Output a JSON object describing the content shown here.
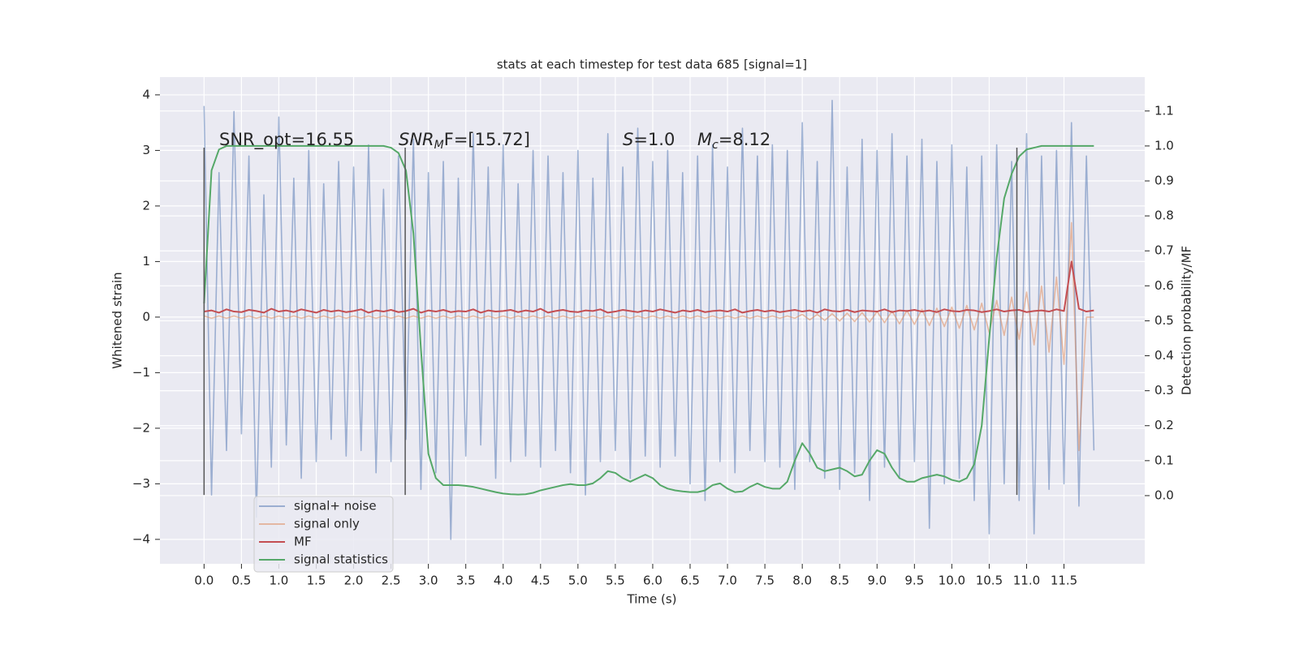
{
  "chart_data": {
    "type": "line",
    "title": "stats at each timestep for test data 685 [signal=1]",
    "xlabel": "Time (s)",
    "ylabel": "Whitened strain",
    "y2label": "Detection probability/MF",
    "annotations": [
      {
        "text": "SNR_opt=16.55"
      },
      {
        "base": "SNR",
        "sub": "M",
        "rest": "F=[15.72]"
      },
      {
        "base": "S",
        "rest": "=1.0"
      },
      {
        "base": "M",
        "sub": "c",
        "rest": "=8.12"
      }
    ],
    "vlines": [
      0,
      2.69,
      10.87
    ],
    "vline_range": [
      -3.2,
      3.05
    ],
    "vline_color": "#555555",
    "grid": true,
    "legend": "lower left",
    "xlim": [
      -0.59,
      12.58
    ],
    "ylim": [
      -4.44,
      4.32
    ],
    "y2lim": [
      -0.195,
      1.197
    ],
    "xticks": [
      {
        "value": 0,
        "label": "0.0"
      },
      0.5,
      {
        "value": 1,
        "label": "1.0"
      },
      1.5,
      {
        "value": 2,
        "label": "2.0"
      },
      2.5,
      {
        "value": 3,
        "label": "3.0"
      },
      3.5,
      {
        "value": 4,
        "label": "4.0"
      },
      4.5,
      {
        "value": 5,
        "label": "5.0"
      },
      5.5,
      {
        "value": 6,
        "label": "6.0"
      },
      6.5,
      {
        "value": 7,
        "label": "7.0"
      },
      7.5,
      {
        "value": 8,
        "label": "8.0"
      },
      8.5,
      {
        "value": 9,
        "label": "9.0"
      },
      9.5,
      {
        "value": 10,
        "label": "10.0"
      },
      10.5,
      {
        "value": 11,
        "label": "11.0"
      },
      11.5
    ],
    "yticks": [
      {
        "value": -4,
        "label": "−4"
      },
      {
        "value": -3,
        "label": "−3"
      },
      {
        "value": -2,
        "label": "−2"
      },
      {
        "value": -1,
        "label": "−1"
      },
      0,
      1,
      2,
      3,
      4
    ],
    "y2ticks": [
      {
        "value": 0,
        "label": "0.0"
      },
      0.1,
      0.2,
      0.3,
      0.4,
      0.5,
      0.6,
      0.7,
      0.8,
      0.9,
      {
        "value": 1,
        "label": "1.0"
      },
      1.1
    ],
    "x": [
      0.0,
      0.1,
      0.2,
      0.3,
      0.4,
      0.5,
      0.6,
      0.7,
      0.8,
      0.9,
      1.0,
      1.1,
      1.2,
      1.3,
      1.4,
      1.5,
      1.6,
      1.7,
      1.8,
      1.9,
      2.0,
      2.1,
      2.2,
      2.3,
      2.4,
      2.5,
      2.6,
      2.7,
      2.8,
      2.9,
      3.0,
      3.1,
      3.2,
      3.3,
      3.4,
      3.5,
      3.6,
      3.7,
      3.8,
      3.9,
      4.0,
      4.1,
      4.2,
      4.3,
      4.4,
      4.5,
      4.6,
      4.7,
      4.8,
      4.9,
      5.0,
      5.1,
      5.2,
      5.3,
      5.4,
      5.5,
      5.6,
      5.7,
      5.8,
      5.9,
      6.0,
      6.1,
      6.2,
      6.3,
      6.4,
      6.5,
      6.6,
      6.7,
      6.8,
      6.9,
      7.0,
      7.1,
      7.2,
      7.3,
      7.4,
      7.5,
      7.6,
      7.7,
      7.8,
      7.9,
      8.0,
      8.1,
      8.2,
      8.3,
      8.4,
      8.5,
      8.6,
      8.7,
      8.8,
      8.9,
      9.0,
      9.1,
      9.2,
      9.3,
      9.4,
      9.5,
      9.6,
      9.7,
      9.8,
      9.9,
      10.0,
      10.1,
      10.2,
      10.3,
      10.4,
      10.5,
      10.6,
      10.7,
      10.8,
      10.9,
      11.0,
      11.1,
      11.2,
      11.3,
      11.4,
      11.5,
      11.6,
      11.7,
      11.8,
      11.9
    ],
    "series": [
      {
        "name": "signal+ noise",
        "color": "#4c72b0",
        "values": [
          3.8,
          -3.2,
          2.6,
          -2.4,
          3.7,
          -2.1,
          2.9,
          -3.6,
          2.2,
          -2.7,
          3.6,
          -2.3,
          2.5,
          -2.9,
          3.0,
          -2.6,
          2.4,
          -2.2,
          2.8,
          -2.5,
          2.7,
          -2.4,
          3.1,
          -2.8,
          2.3,
          -2.6,
          2.9,
          -2.2,
          3.2,
          -3.1,
          2.6,
          -2.8,
          2.8,
          -4.0,
          2.5,
          -2.5,
          3.3,
          -2.3,
          2.7,
          -2.9,
          3.1,
          -2.6,
          2.4,
          -2.5,
          3.0,
          -2.7,
          2.9,
          -2.4,
          2.6,
          -2.8,
          3.0,
          -3.2,
          2.5,
          -2.6,
          3.3,
          -2.4,
          2.7,
          -2.9,
          3.4,
          -2.5,
          2.8,
          -2.7,
          3.0,
          -2.5,
          2.6,
          -3.0,
          2.9,
          -3.3,
          3.1,
          -2.6,
          2.7,
          -2.8,
          3.4,
          -2.4,
          2.9,
          -2.6,
          3.1,
          -2.7,
          3.0,
          -3.1,
          3.5,
          -2.6,
          2.8,
          -2.9,
          3.9,
          -3.1,
          2.7,
          -2.8,
          3.2,
          -3.3,
          3.0,
          -2.7,
          3.3,
          -2.9,
          2.9,
          -2.6,
          3.2,
          -3.8,
          2.8,
          -3.0,
          3.1,
          -2.9,
          2.7,
          -3.3,
          2.9,
          -3.9,
          3.1,
          -3.0,
          2.8,
          -3.3,
          3.3,
          -3.9,
          2.9,
          -3.1,
          3.0,
          -3.0,
          3.5,
          -3.4,
          2.9,
          -2.4
        ]
      },
      {
        "name": "signal only",
        "color": "#dd8452",
        "values": [
          0.02,
          -0.02,
          0.02,
          -0.02,
          0.02,
          -0.02,
          0.02,
          -0.02,
          0.02,
          -0.02,
          0.02,
          -0.02,
          0.02,
          -0.02,
          0.02,
          -0.02,
          0.02,
          -0.02,
          0.02,
          -0.02,
          0.02,
          -0.02,
          0.02,
          -0.02,
          0.02,
          -0.02,
          0.02,
          -0.02,
          0.02,
          -0.02,
          0.02,
          -0.02,
          0.02,
          -0.02,
          0.02,
          -0.02,
          0.02,
          -0.02,
          0.02,
          -0.02,
          0.02,
          -0.02,
          0.02,
          -0.02,
          0.02,
          -0.02,
          0.02,
          -0.02,
          0.02,
          -0.02,
          0.02,
          -0.02,
          0.02,
          -0.02,
          0.02,
          -0.02,
          0.02,
          -0.02,
          0.02,
          -0.02,
          0.02,
          -0.02,
          0.02,
          -0.02,
          0.02,
          -0.02,
          0.02,
          -0.02,
          0.02,
          -0.02,
          0.02,
          -0.02,
          0.02,
          -0.02,
          0.02,
          -0.02,
          0.02,
          -0.02,
          0.02,
          -0.02,
          0.05,
          -0.05,
          0.05,
          -0.06,
          0.06,
          -0.07,
          0.07,
          -0.08,
          0.08,
          -0.09,
          0.1,
          -0.1,
          0.11,
          -0.12,
          0.12,
          -0.13,
          0.14,
          -0.15,
          0.16,
          -0.17,
          0.18,
          -0.2,
          0.21,
          -0.23,
          0.25,
          -0.28,
          0.3,
          -0.33,
          0.36,
          -0.4,
          0.45,
          -0.5,
          0.56,
          -0.63,
          0.72,
          -0.85,
          1.7,
          -2.4,
          0.0,
          0.0
        ]
      },
      {
        "name": "MF",
        "color": "#c44e52",
        "values": [
          0.1,
          0.12,
          0.08,
          0.14,
          0.1,
          0.09,
          0.13,
          0.11,
          0.08,
          0.15,
          0.1,
          0.12,
          0.09,
          0.14,
          0.11,
          0.08,
          0.13,
          0.1,
          0.12,
          0.09,
          0.11,
          0.14,
          0.08,
          0.12,
          0.1,
          0.13,
          0.09,
          0.11,
          0.15,
          0.08,
          0.12,
          0.1,
          0.13,
          0.09,
          0.11,
          0.1,
          0.14,
          0.08,
          0.12,
          0.1,
          0.11,
          0.13,
          0.09,
          0.12,
          0.1,
          0.15,
          0.08,
          0.11,
          0.13,
          0.1,
          0.09,
          0.12,
          0.11,
          0.14,
          0.08,
          0.1,
          0.13,
          0.11,
          0.09,
          0.12,
          0.1,
          0.14,
          0.11,
          0.08,
          0.12,
          0.1,
          0.13,
          0.09,
          0.11,
          0.12,
          0.1,
          0.14,
          0.08,
          0.11,
          0.13,
          0.1,
          0.12,
          0.09,
          0.11,
          0.13,
          0.1,
          0.12,
          0.08,
          0.14,
          0.11,
          0.1,
          0.13,
          0.09,
          0.12,
          0.11,
          0.1,
          0.14,
          0.09,
          0.12,
          0.11,
          0.13,
          0.1,
          0.12,
          0.09,
          0.14,
          0.11,
          0.1,
          0.13,
          0.12,
          0.09,
          0.11,
          0.14,
          0.1,
          0.12,
          0.13,
          0.09,
          0.11,
          0.12,
          0.1,
          0.14,
          0.11,
          1.0,
          0.15,
          0.1,
          0.12
        ]
      },
      {
        "name": "signal statistics",
        "color": "#55a868",
        "axis": "y2",
        "values": [
          0.55,
          0.93,
          0.99,
          1.0,
          1.0,
          1.0,
          1.0,
          1.0,
          1.0,
          1.0,
          1.0,
          1.0,
          1.0,
          1.0,
          1.0,
          1.0,
          1.0,
          1.0,
          1.0,
          1.0,
          1.0,
          1.0,
          1.0,
          1.0,
          1.0,
          0.995,
          0.98,
          0.93,
          0.75,
          0.42,
          0.12,
          0.05,
          0.03,
          0.03,
          0.03,
          0.028,
          0.025,
          0.02,
          0.015,
          0.01,
          0.006,
          0.004,
          0.003,
          0.004,
          0.008,
          0.015,
          0.02,
          0.025,
          0.03,
          0.033,
          0.03,
          0.03,
          0.035,
          0.05,
          0.07,
          0.065,
          0.05,
          0.04,
          0.05,
          0.06,
          0.05,
          0.03,
          0.02,
          0.015,
          0.012,
          0.01,
          0.01,
          0.015,
          0.03,
          0.035,
          0.02,
          0.01,
          0.012,
          0.025,
          0.035,
          0.025,
          0.02,
          0.02,
          0.04,
          0.1,
          0.15,
          0.12,
          0.08,
          0.07,
          0.075,
          0.08,
          0.07,
          0.055,
          0.06,
          0.1,
          0.13,
          0.12,
          0.08,
          0.05,
          0.04,
          0.04,
          0.05,
          0.055,
          0.06,
          0.055,
          0.045,
          0.04,
          0.05,
          0.09,
          0.2,
          0.45,
          0.68,
          0.85,
          0.92,
          0.97,
          0.99,
          0.995,
          1.0,
          1.0,
          1.0,
          1.0,
          1.0,
          1.0,
          1.0,
          1.0
        ]
      }
    ]
  }
}
